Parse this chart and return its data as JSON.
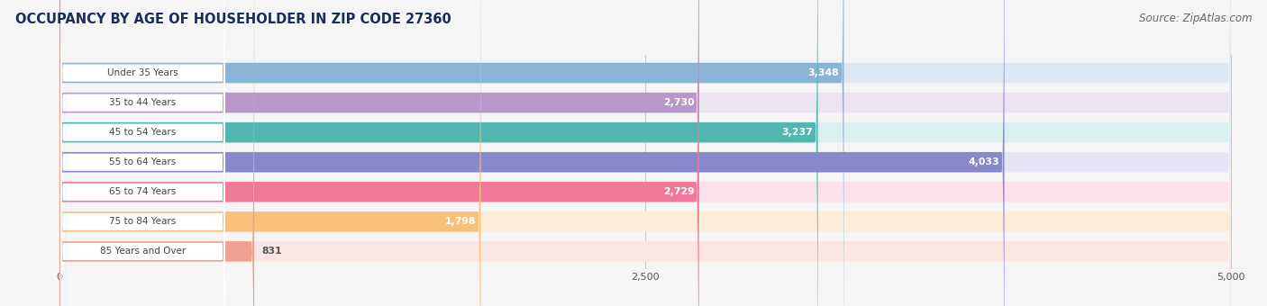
{
  "title": "OCCUPANCY BY AGE OF HOUSEHOLDER IN ZIP CODE 27360",
  "source": "Source: ZipAtlas.com",
  "categories": [
    "Under 35 Years",
    "35 to 44 Years",
    "45 to 54 Years",
    "55 to 64 Years",
    "65 to 74 Years",
    "75 to 84 Years",
    "85 Years and Over"
  ],
  "values": [
    3348,
    2730,
    3237,
    4033,
    2729,
    1798,
    831
  ],
  "bar_colors": [
    "#8ab4d4",
    "#b898c8",
    "#50b8b0",
    "#8888cc",
    "#f07898",
    "#f8c07a",
    "#f0a090"
  ],
  "bar_bg_colors": [
    "#dde8f2",
    "#ebe4f0",
    "#daf0ee",
    "#e4e4f4",
    "#fce0ea",
    "#fdecd8",
    "#fce6e2"
  ],
  "xlim_min": -200,
  "xlim_max": 5000,
  "xmax": 5000,
  "xticks": [
    0,
    2500,
    5000
  ],
  "title_fontsize": 10.5,
  "source_fontsize": 8.5,
  "cat_label_fontsize": 7.5,
  "value_fontsize": 7.8,
  "background_color": "#f5f5f5",
  "title_color": "#1a2d5a",
  "source_color": "#666666",
  "value_color_inside": "#ffffff",
  "value_color_outside": "#555555",
  "grid_color": "#cccccc",
  "label_box_color": "#ffffff",
  "label_text_color": "#444444"
}
